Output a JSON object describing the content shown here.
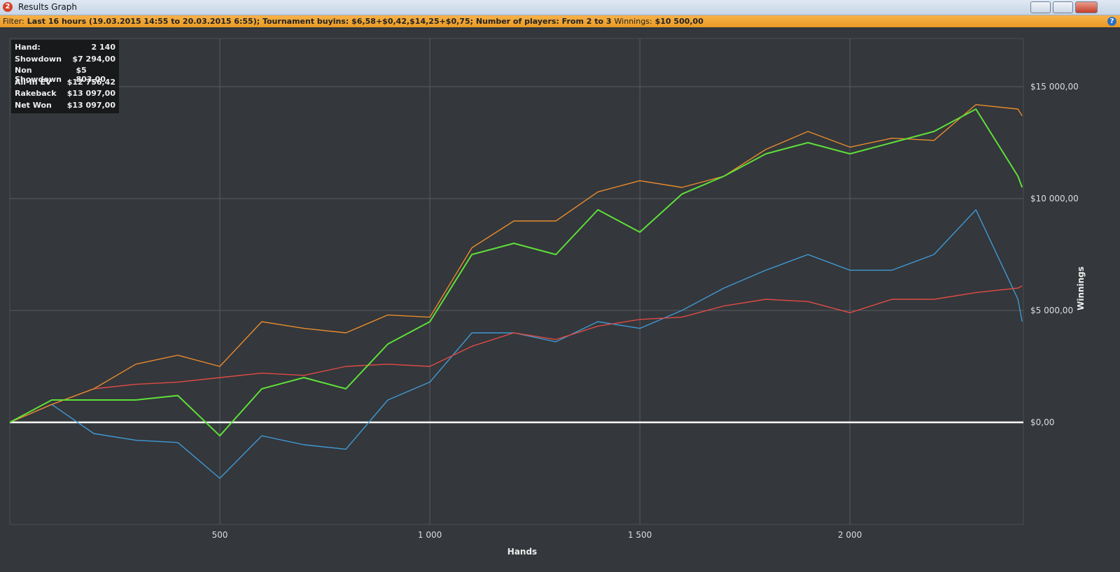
{
  "window": {
    "app_icon": "2",
    "title": "Results Graph"
  },
  "filter": {
    "label": "Filter:",
    "text": "Last 16 hours (19.03.2015 14:55 to 20.03.2015 6:55); Tournament buyins: $6,58+$0,42,$14,25+$0,75; Number of players: From 2 to 3",
    "winnings_label": "Winnings:",
    "winnings_value": "$10 500,00",
    "help_icon": "?"
  },
  "stats": {
    "rows": [
      [
        "Hand:",
        "2 140"
      ],
      [
        "Showdown",
        "$7 294,00"
      ],
      [
        "Non Showdown",
        "$5 803,00"
      ],
      [
        "All-In EV",
        "$12 756,42"
      ],
      [
        "Rakeback",
        "$13 097,00"
      ],
      [
        "Net Won",
        "$13 097,00"
      ]
    ]
  },
  "chart_data": {
    "type": "line",
    "x_label": "Hands",
    "y_label": "Winnings",
    "x": [
      0,
      100,
      200,
      300,
      400,
      500,
      600,
      700,
      800,
      900,
      1000,
      1100,
      1200,
      1300,
      1400,
      1500,
      1600,
      1700,
      1800,
      1900,
      2000,
      2100,
      2200,
      2300,
      2400,
      2410
    ],
    "xlim": [
      0,
      2413
    ],
    "ylim": [
      -4563,
      17156
    ],
    "xticks": [
      {
        "value": 500,
        "label": "500"
      },
      {
        "value": 1000,
        "label": "1 000"
      },
      {
        "value": 1500,
        "label": "1 500"
      },
      {
        "value": 2000,
        "label": "2 000"
      }
    ],
    "yticks": [
      {
        "value": 0,
        "label": "$0,00"
      },
      {
        "value": 5000,
        "label": "$5 000,00"
      },
      {
        "value": 10000,
        "label": "$10 000,00"
      },
      {
        "value": 15000,
        "label": "$15 000,00"
      }
    ],
    "grid": true,
    "series": [
      {
        "color": "#3f9ad6",
        "values": [
          0,
          800,
          -500,
          -800,
          -900,
          -2500,
          -600,
          -1000,
          -1200,
          1000,
          1800,
          4000,
          4000,
          3600,
          4500,
          4200,
          5000,
          6000,
          6800,
          7500,
          6800,
          6800,
          7500,
          9500,
          5500,
          4500
        ]
      },
      {
        "color": "#e04b45",
        "values": [
          0,
          800,
          1500,
          1700,
          1800,
          2000,
          2200,
          2100,
          2500,
          2600,
          2500,
          3400,
          4000,
          3700,
          4300,
          4600,
          4700,
          5200,
          5500,
          5400,
          4900,
          5500,
          5500,
          5800,
          6000,
          6100
        ]
      },
      {
        "color": "#e88b2e",
        "values": [
          0,
          800,
          1500,
          2600,
          3000,
          2500,
          4500,
          4200,
          4000,
          4800,
          4700,
          7800,
          9000,
          9000,
          10300,
          10800,
          10500,
          11000,
          12200,
          13000,
          12300,
          12700,
          12600,
          14200,
          14000,
          13700
        ]
      },
      {
        "color": "#5ee03a",
        "values": [
          0,
          1000,
          1000,
          1000,
          1200,
          -600,
          1500,
          2000,
          1500,
          3500,
          4500,
          7500,
          8000,
          7500,
          9500,
          8500,
          10200,
          11000,
          12000,
          12500,
          12000,
          12500,
          13000,
          14000,
          11000,
          10500
        ]
      }
    ]
  }
}
